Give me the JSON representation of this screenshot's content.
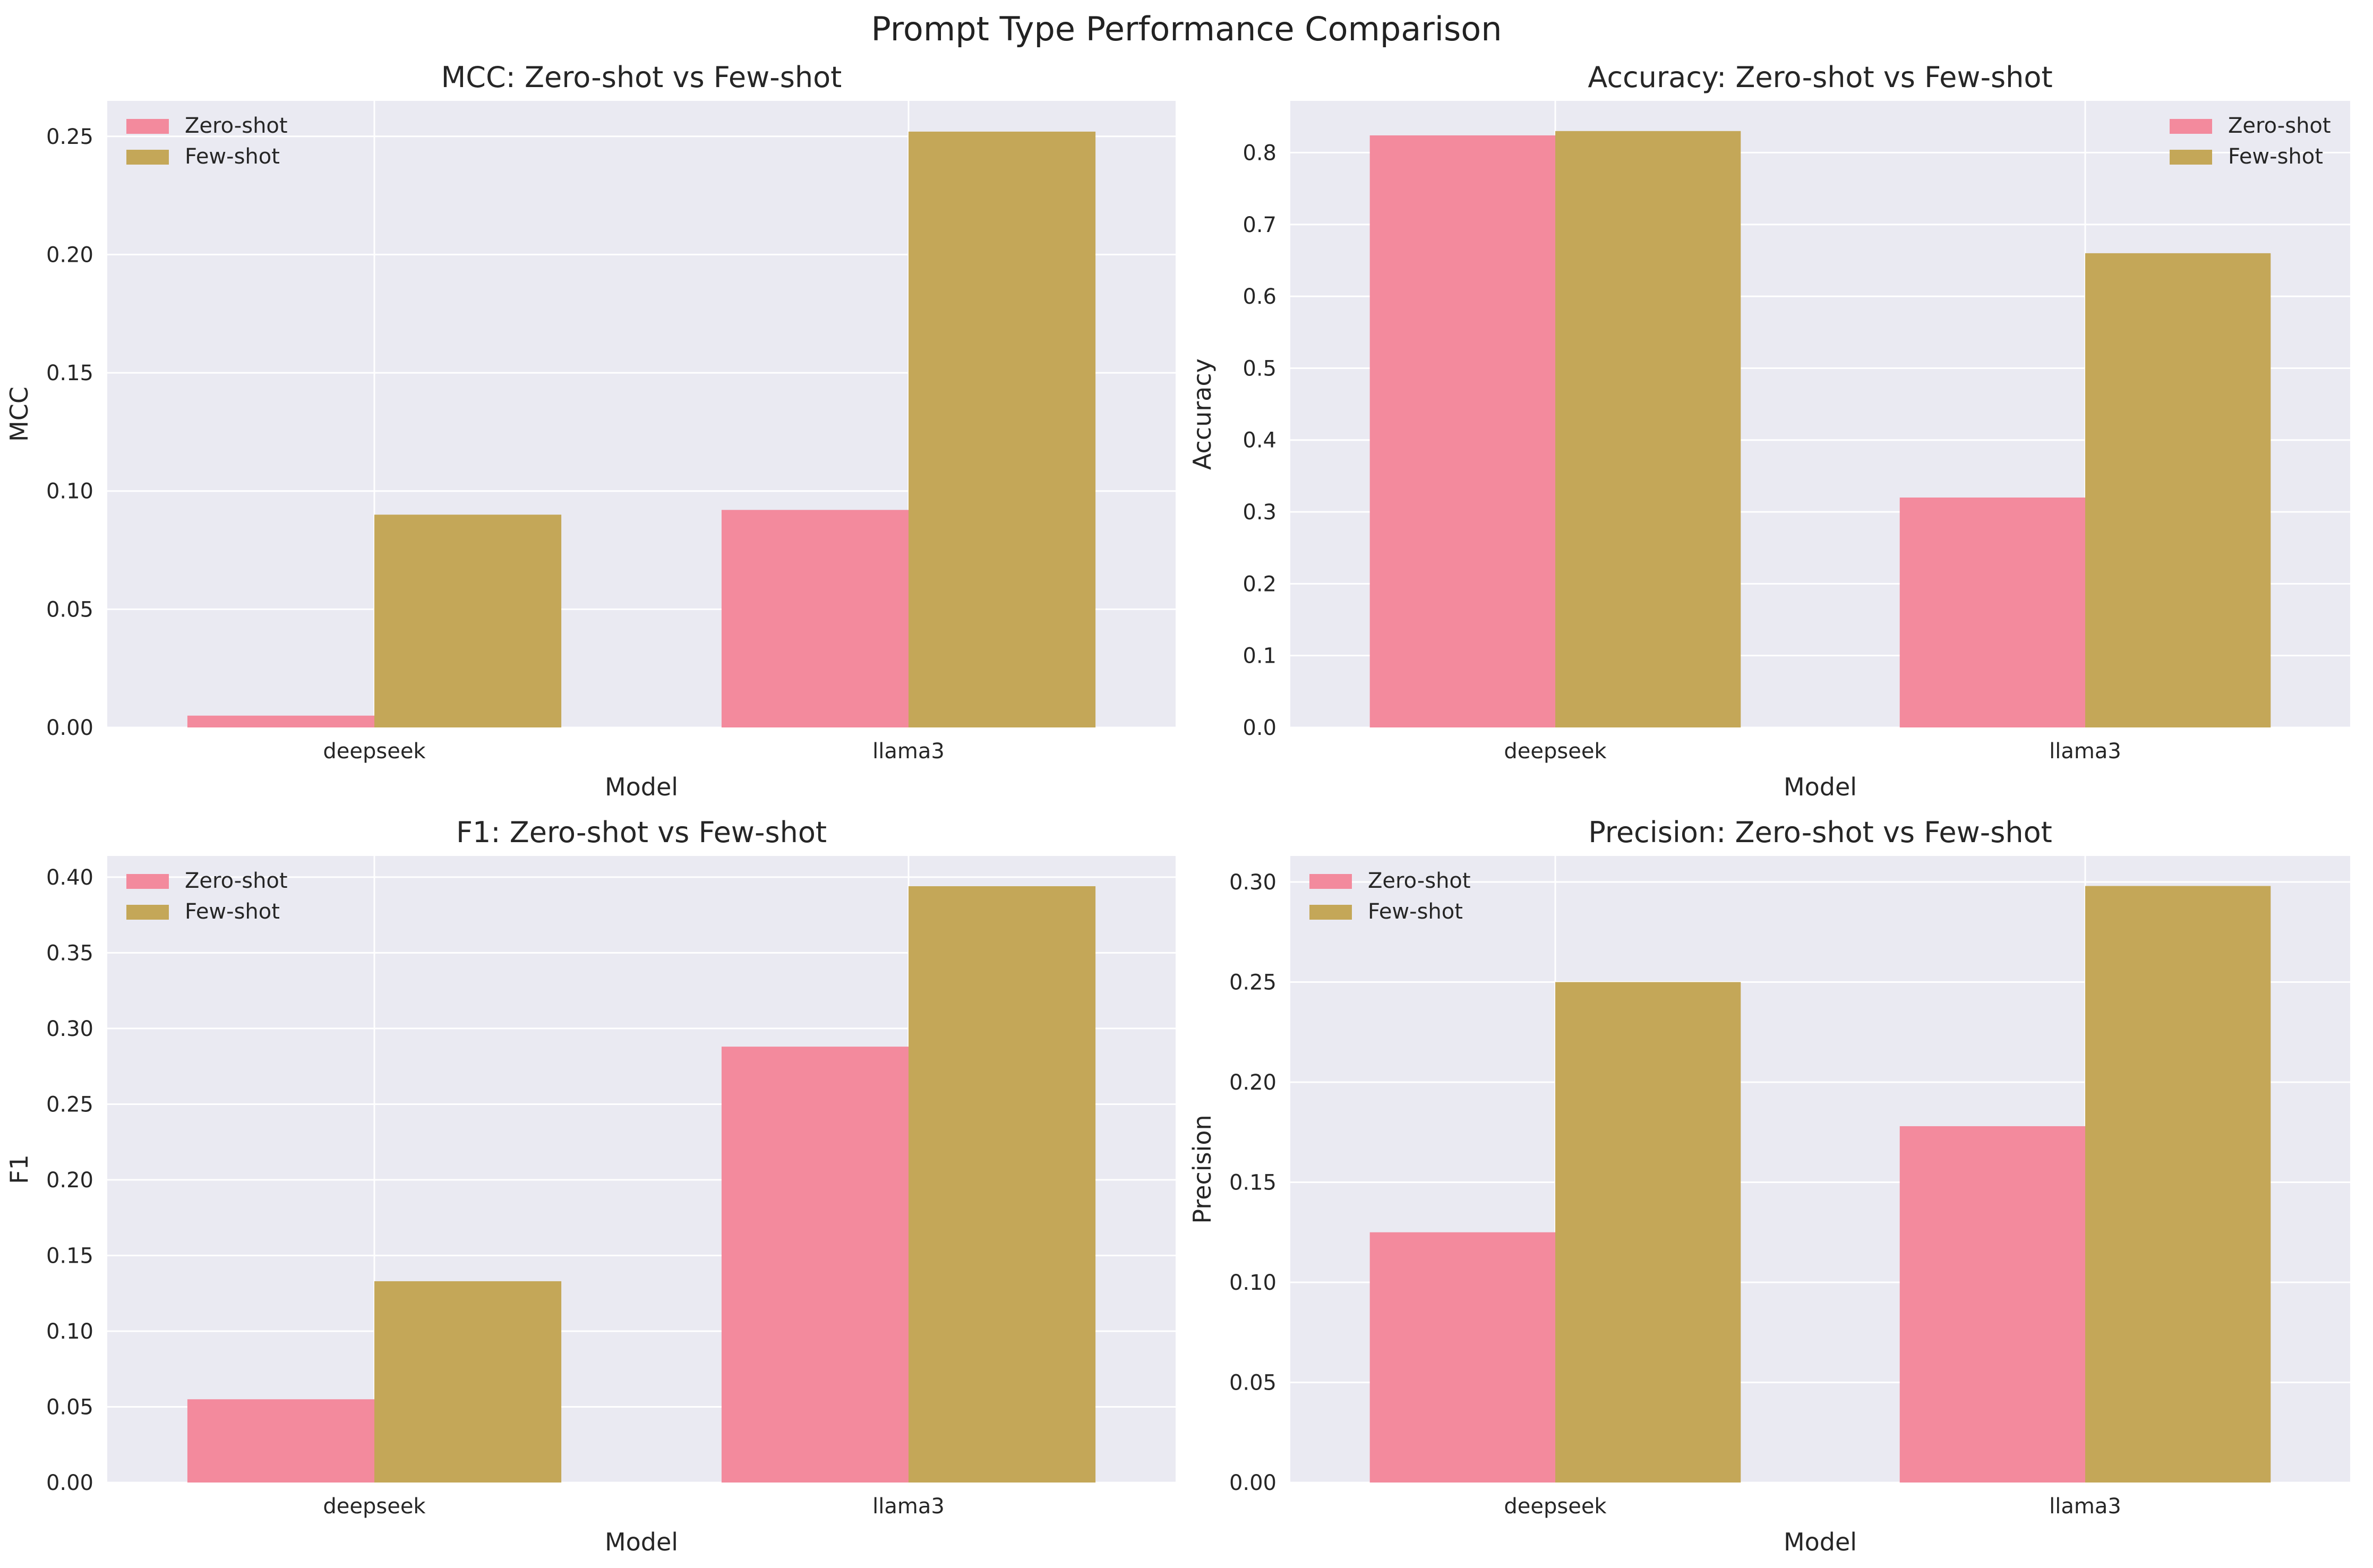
{
  "figure_title": "Prompt Type Performance Comparison",
  "colors": {
    "zero_shot": "#f38a9d",
    "few_shot": "#c4a758",
    "background": "#eaeaf2",
    "grid": "#ffffff"
  },
  "chart_data": [
    {
      "type": "bar",
      "title": "MCC: Zero-shot vs Few-shot",
      "xlabel": "Model",
      "ylabel": "MCC",
      "categories": [
        "deepseek",
        "llama3"
      ],
      "series": [
        {
          "name": "Zero-shot",
          "values": [
            0.005,
            0.092
          ]
        },
        {
          "name": "Few-shot",
          "values": [
            0.09,
            0.252
          ]
        }
      ],
      "ylim": [
        0,
        0.265
      ],
      "yticks": [
        "0.00",
        "0.05",
        "0.10",
        "0.15",
        "0.20",
        "0.25"
      ],
      "legend": "upper-left"
    },
    {
      "type": "bar",
      "title": "Accuracy: Zero-shot vs Few-shot",
      "xlabel": "Model",
      "ylabel": "Accuracy",
      "categories": [
        "deepseek",
        "llama3"
      ],
      "series": [
        {
          "name": "Zero-shot",
          "values": [
            0.824,
            0.32
          ]
        },
        {
          "name": "Few-shot",
          "values": [
            0.83,
            0.66
          ]
        }
      ],
      "ylim": [
        0,
        0.872
      ],
      "yticks": [
        "0.0",
        "0.1",
        "0.2",
        "0.3",
        "0.4",
        "0.5",
        "0.6",
        "0.7",
        "0.8"
      ],
      "legend": "upper-right"
    },
    {
      "type": "bar",
      "title": "F1: Zero-shot vs Few-shot",
      "xlabel": "Model",
      "ylabel": "F1",
      "categories": [
        "deepseek",
        "llama3"
      ],
      "series": [
        {
          "name": "Zero-shot",
          "values": [
            0.055,
            0.288
          ]
        },
        {
          "name": "Few-shot",
          "values": [
            0.133,
            0.394
          ]
        }
      ],
      "ylim": [
        0,
        0.414
      ],
      "yticks": [
        "0.00",
        "0.05",
        "0.10",
        "0.15",
        "0.20",
        "0.25",
        "0.30",
        "0.35",
        "0.40"
      ],
      "legend": "upper-left"
    },
    {
      "type": "bar",
      "title": "Precision: Zero-shot vs Few-shot",
      "xlabel": "Model",
      "ylabel": "Precision",
      "categories": [
        "deepseek",
        "llama3"
      ],
      "series": [
        {
          "name": "Zero-shot",
          "values": [
            0.125,
            0.178
          ]
        },
        {
          "name": "Few-shot",
          "values": [
            0.25,
            0.298
          ]
        }
      ],
      "ylim": [
        0,
        0.313
      ],
      "yticks": [
        "0.00",
        "0.05",
        "0.10",
        "0.15",
        "0.20",
        "0.25",
        "0.30"
      ],
      "legend": "upper-left"
    }
  ]
}
